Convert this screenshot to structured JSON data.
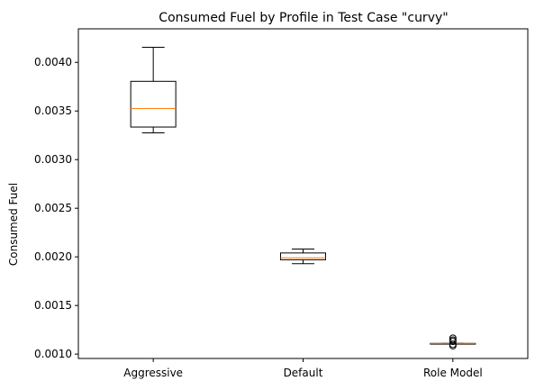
{
  "chart_data": {
    "type": "box",
    "title": "Consumed Fuel by Profile in Test Case \"curvy\"",
    "xlabel": "",
    "ylabel": "Consumed Fuel",
    "ylim": [
      0.000955,
      0.004345
    ],
    "yticks": [
      0.001,
      0.0015,
      0.002,
      0.0025,
      0.003,
      0.0035,
      0.004
    ],
    "ytick_labels": [
      "0.0010",
      "0.0015",
      "0.0020",
      "0.0025",
      "0.0030",
      "0.0035",
      "0.0040"
    ],
    "grid": false,
    "categories": [
      "Aggressive",
      "Default",
      "Role Model"
    ],
    "boxes": [
      {
        "whisker_low": 0.003275,
        "q1": 0.003335,
        "median": 0.003525,
        "q3": 0.003805,
        "whisker_high": 0.004155,
        "outliers": []
      },
      {
        "whisker_low": 0.00193,
        "q1": 0.00197,
        "median": 0.00199,
        "q3": 0.00204,
        "whisker_high": 0.00208,
        "outliers": []
      },
      {
        "whisker_low": 0.00111,
        "q1": 0.00111,
        "median": 0.00111,
        "q3": 0.00111,
        "whisker_high": 0.00111,
        "outliers": [
          0.001085,
          0.0011,
          0.00113,
          0.001145,
          0.001165
        ]
      }
    ],
    "colors": {
      "box": "#000000",
      "median": "#ff7f0e"
    }
  }
}
